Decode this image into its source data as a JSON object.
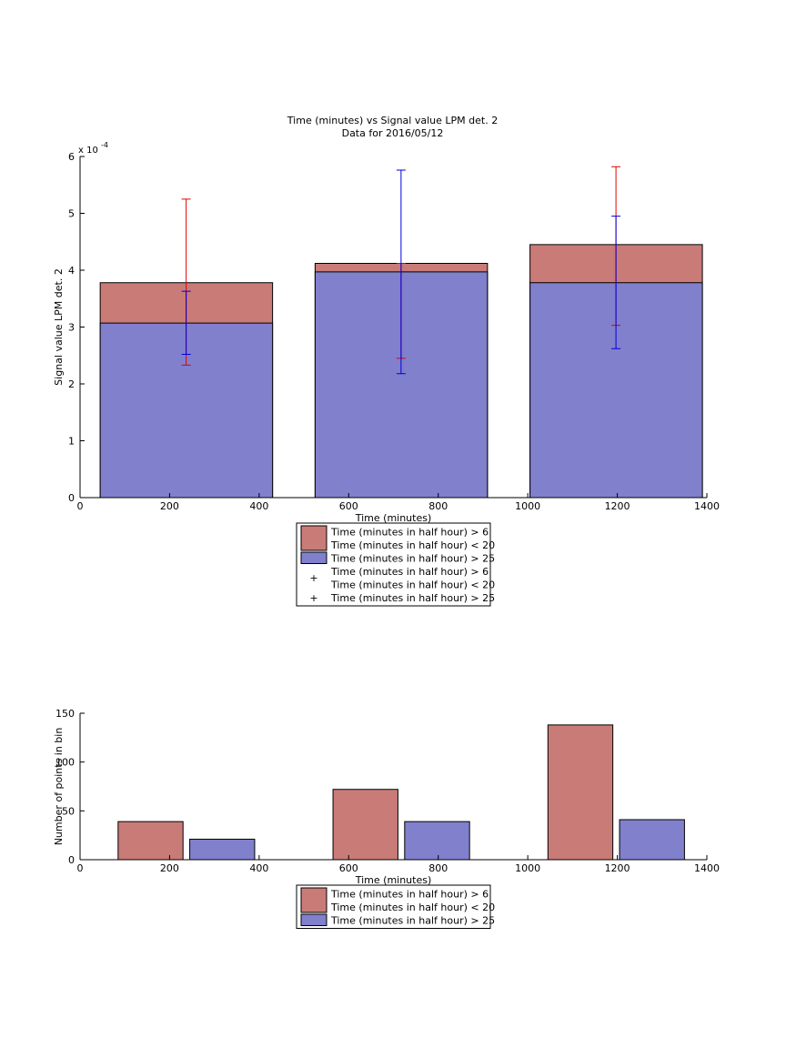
{
  "chart_data": [
    {
      "type": "bar",
      "title": [
        "Time (minutes) vs Signal value LPM det. 2",
        "Data for 2016/05/12"
      ],
      "xlabel": "Time (minutes)",
      "ylabel": "Signal value LPM det. 2",
      "xlim": [
        0,
        1400
      ],
      "ylim": [
        0,
        6
      ],
      "xticks": [
        0,
        200,
        400,
        600,
        800,
        1000,
        1200,
        1400
      ],
      "yticks": [
        0,
        1,
        2,
        3,
        4,
        5,
        6
      ],
      "y_exponent_label": "x 10",
      "y_exponent": "-4",
      "grid": false,
      "legend_location": "below",
      "colors": {
        "red": "#c97b78",
        "blue": "#8080cc",
        "red_marker": "#e00000",
        "blue_marker": "#0000dd"
      },
      "bars": [
        {
          "x_start": 45,
          "x_end": 430,
          "top_value": 3.78,
          "blue_value": 3.07
        },
        {
          "x_start": 525,
          "x_end": 910,
          "top_value": 4.12,
          "blue_value": 3.97
        },
        {
          "x_start": 1005,
          "x_end": 1390,
          "top_value": 4.45,
          "blue_value": 3.78
        }
      ],
      "series": [
        {
          "legend": "Time (minutes in half hour) > 6\nTime (minutes in half hour) < 20",
          "color": "#c97b78",
          "values": [
            3.78,
            4.12,
            4.45
          ],
          "errorbars": [
            {
              "x": 237,
              "low": 2.33,
              "high": 5.25
            },
            {
              "x": 717,
              "low": 2.45,
              "high": 4.12
            },
            {
              "x": 1197,
              "low": 3.03,
              "high": 5.82
            }
          ]
        },
        {
          "legend": "Time (minutes in half hour) > 25",
          "color": "#8080cc",
          "values": [
            3.07,
            3.97,
            3.78
          ],
          "errorbars": [
            {
              "x": 237,
              "low": 2.52,
              "high": 3.63
            },
            {
              "x": 717,
              "low": 2.18,
              "high": 5.76
            },
            {
              "x": 1197,
              "low": 2.62,
              "high": 4.95
            }
          ]
        }
      ],
      "legend": [
        {
          "kind": "patch",
          "color": "#c97b78",
          "lines": [
            "Time (minutes in half hour) > 6",
            "Time (minutes in half hour) < 20"
          ]
        },
        {
          "kind": "patch",
          "color": "#8080cc",
          "lines": [
            "Time (minutes in half hour) > 25"
          ]
        },
        {
          "kind": "marker",
          "color": "#e00000",
          "lines": [
            "Time (minutes in half hour) > 6",
            "Time (minutes in half hour) < 20"
          ]
        },
        {
          "kind": "marker",
          "color": "#0000dd",
          "lines": [
            "Time (minutes in half hour) > 25"
          ]
        }
      ]
    },
    {
      "type": "bar",
      "title": [],
      "xlabel": "Time (minutes)",
      "ylabel": "Number of points in bin",
      "xlim": [
        0,
        1400
      ],
      "ylim": [
        0,
        150
      ],
      "xticks": [
        0,
        200,
        400,
        600,
        800,
        1000,
        1200,
        1400
      ],
      "yticks": [
        0,
        50,
        100,
        150
      ],
      "grid": false,
      "legend_location": "below",
      "bars": [
        {
          "x_start": 85,
          "x_end": 230,
          "value": 39,
          "color": "#c97b78"
        },
        {
          "x_start": 245,
          "x_end": 390,
          "value": 21,
          "color": "#8080cc"
        },
        {
          "x_start": 565,
          "x_end": 710,
          "value": 72,
          "color": "#c97b78"
        },
        {
          "x_start": 725,
          "x_end": 870,
          "value": 39,
          "color": "#8080cc"
        },
        {
          "x_start": 1045,
          "x_end": 1190,
          "value": 138,
          "color": "#c97b78"
        },
        {
          "x_start": 1205,
          "x_end": 1350,
          "value": 41,
          "color": "#8080cc"
        }
      ],
      "legend": [
        {
          "kind": "patch",
          "color": "#c97b78",
          "lines": [
            "Time (minutes in half hour) > 6",
            "Time (minutes in half hour) < 20"
          ]
        },
        {
          "kind": "patch",
          "color": "#8080cc",
          "lines": [
            "Time (minutes in half hour) > 25"
          ]
        }
      ]
    }
  ]
}
